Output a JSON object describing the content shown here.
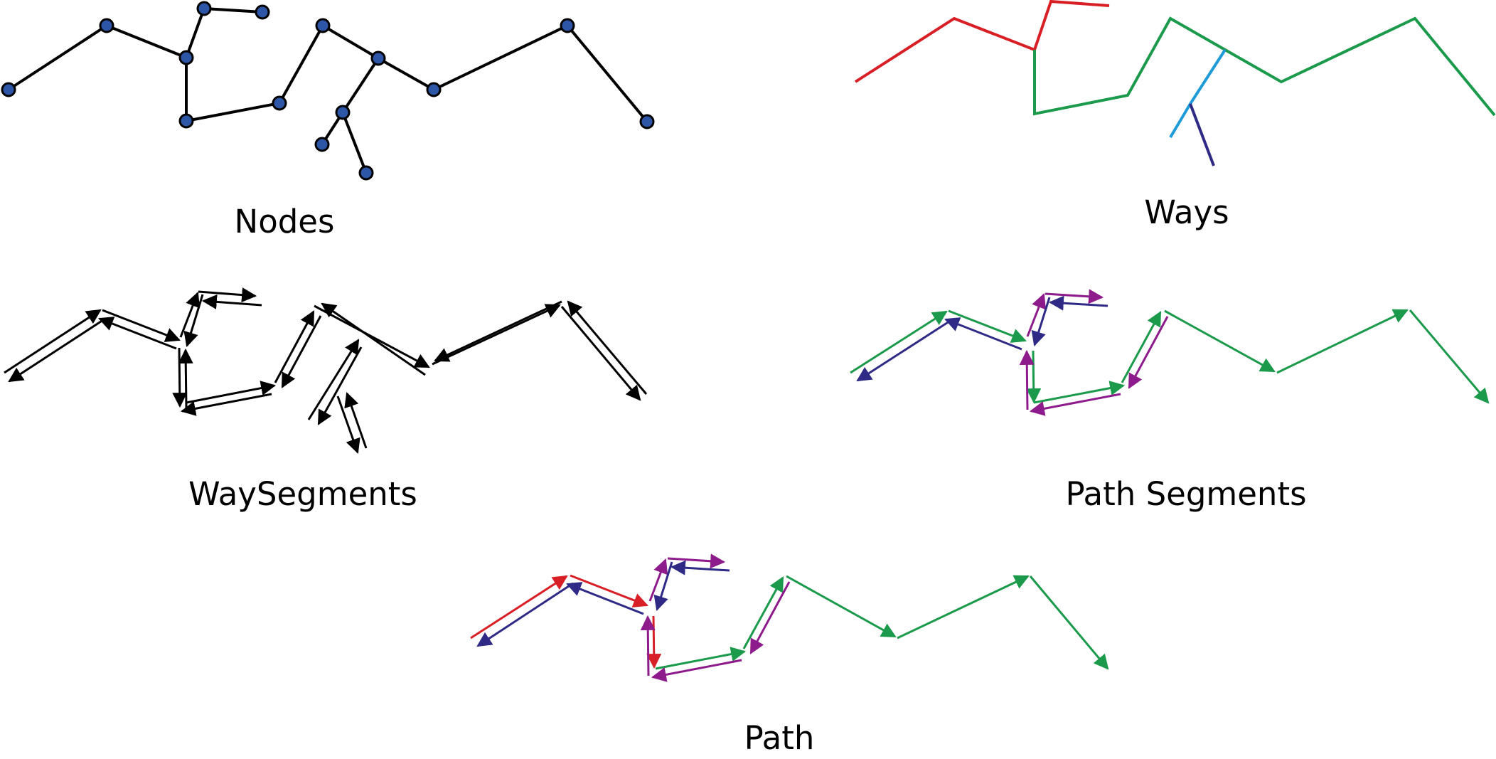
{
  "panels": {
    "nodes": {
      "label": "Nodes"
    },
    "ways": {
      "label": "Ways"
    },
    "waysegments": {
      "label": "WaySegments"
    },
    "pathsegments": {
      "label": "Path Segments"
    },
    "path": {
      "label": "Path"
    }
  },
  "colors": {
    "line": "#000000",
    "node_fill": "#2e56a6",
    "red": "#d81f26",
    "green": "#1a9a4a",
    "navy": "#2e2a86",
    "cyan": "#1e9bd7",
    "purple": "#8e1b8b"
  },
  "icons": {
    "arrowhead": "triangle-arrow-icon",
    "node": "circle-node-icon"
  }
}
